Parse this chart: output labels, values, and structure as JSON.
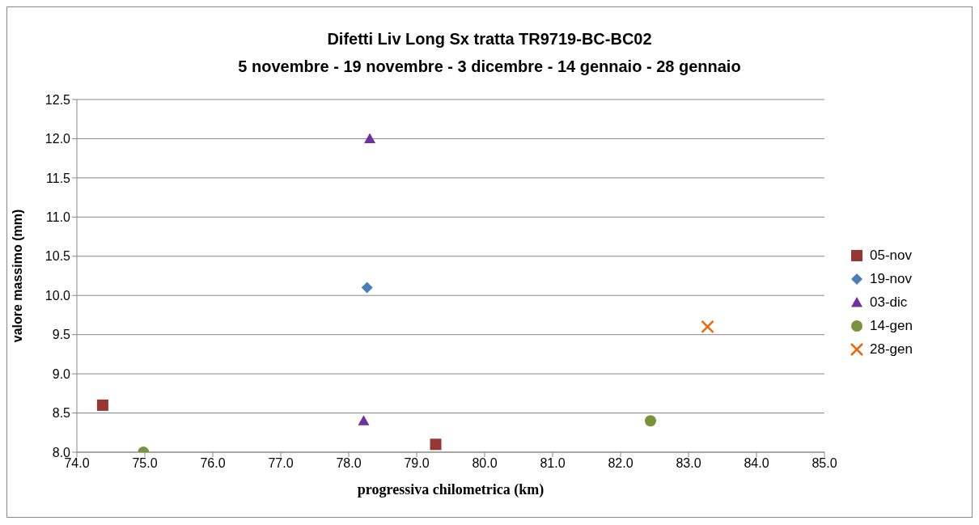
{
  "chart_data": {
    "type": "scatter",
    "title": "Difetti Liv Long Sx tratta TR9719-BC-BC02",
    "subtitle": "5 novembre - 19 novembre - 3 dicembre - 14 gennaio - 28 gennaio",
    "xlabel": "progressiva chilometrica (km)",
    "ylabel": "valore massimo (mm)",
    "xlim": [
      74,
      85
    ],
    "xticks": [
      {
        "value": 74,
        "label": "74.0"
      },
      {
        "value": 75,
        "label": "75.0"
      },
      {
        "value": 76,
        "label": "76.0"
      },
      {
        "value": 77,
        "label": "77.0"
      },
      {
        "value": 78,
        "label": "78.0"
      },
      {
        "value": 79,
        "label": "79.0"
      },
      {
        "value": 80,
        "label": "80.0"
      },
      {
        "value": 81,
        "label": "81.0"
      },
      {
        "value": 82,
        "label": "82.0"
      },
      {
        "value": 83,
        "label": "83.0"
      },
      {
        "value": 84,
        "label": "84.0"
      },
      {
        "value": 85,
        "label": "85.0"
      }
    ],
    "ylim": [
      8,
      12.5
    ],
    "yticks": [
      {
        "value": 8,
        "label": "8.0"
      },
      {
        "value": 8.5,
        "label": "8.5"
      },
      {
        "value": 9,
        "label": "9.0"
      },
      {
        "value": 9.5,
        "label": "9.5"
      },
      {
        "value": 10,
        "label": "10.0"
      },
      {
        "value": 10.5,
        "label": "10.5"
      },
      {
        "value": 11,
        "label": "11.0"
      },
      {
        "value": 11.5,
        "label": "11.5"
      },
      {
        "value": 12,
        "label": "12.0"
      },
      {
        "value": 12.5,
        "label": "12.5"
      }
    ],
    "grid": "y",
    "legend": "right",
    "series": [
      {
        "name": "05-nov",
        "color": "#953735",
        "marker": "square",
        "x": [
          74.38,
          79.28
        ],
        "values": [
          8.6,
          8.1
        ]
      },
      {
        "name": "19-nov",
        "color": "#4a7ebb",
        "marker": "diamond",
        "x": [
          78.27
        ],
        "values": [
          10.1
        ]
      },
      {
        "name": "03-dic",
        "color": "#7030a0",
        "marker": "triangle",
        "x": [
          78.31,
          78.22
        ],
        "values": [
          12.0,
          8.4
        ]
      },
      {
        "name": "14-gen",
        "color": "#77933c",
        "marker": "circle",
        "x": [
          74.98,
          82.44
        ],
        "values": [
          8.0,
          8.4
        ]
      },
      {
        "name": "28-gen",
        "color": "#e46c0a",
        "marker": "cross",
        "x": [
          83.28
        ],
        "values": [
          9.6
        ]
      }
    ]
  }
}
